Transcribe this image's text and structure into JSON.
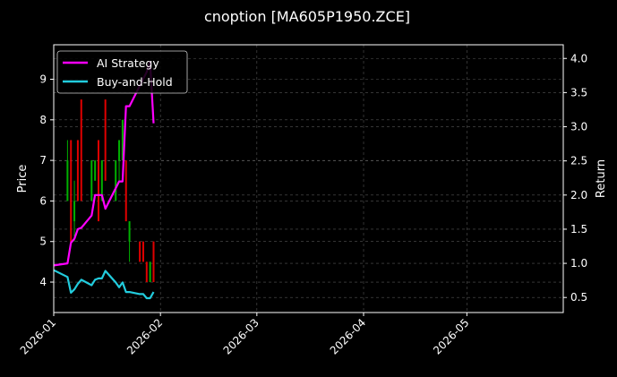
{
  "chart_data": {
    "type": "line",
    "title": "cnoption [MA605P1950.ZCE]",
    "xlabel": "",
    "ylabel_left": "Price",
    "ylabel_right": "Return",
    "x_range": [
      "2026-01-01",
      "2026-05-29"
    ],
    "x_ticks": [
      "2026-01",
      "2026-02",
      "2026-03",
      "2026-04",
      "2026-05"
    ],
    "ylim_left": [
      3.25,
      9.85
    ],
    "yticks_left": [
      4,
      5,
      6,
      7,
      8,
      9
    ],
    "ylim_right": [
      0.28,
      4.2
    ],
    "yticks_right": [
      "0.5",
      "1.0",
      "1.5",
      "2.0",
      "2.5",
      "3.0",
      "3.5",
      "4.0"
    ],
    "grid": true,
    "legend_position": "top-left",
    "colors": {
      "background": "#000000",
      "up": "#00b000",
      "down": "#e00000",
      "grid": "#555555"
    },
    "candles": [
      {
        "date": "2026-01-05",
        "open": 6.0,
        "close": 7.0,
        "low": 6.0,
        "high": 7.5
      },
      {
        "date": "2026-01-06",
        "open": 7.5,
        "close": 5.0,
        "low": 5.0,
        "high": 7.5
      },
      {
        "date": "2026-01-07",
        "open": 5.5,
        "close": 6.0,
        "low": 5.0,
        "high": 6.5
      },
      {
        "date": "2026-01-08",
        "open": 7.5,
        "close": 6.0,
        "low": 6.0,
        "high": 7.5
      },
      {
        "date": "2026-01-09",
        "open": 8.5,
        "close": 6.0,
        "low": 6.0,
        "high": 8.5
      },
      {
        "date": "2026-01-12",
        "open": 6.0,
        "close": 7.0,
        "low": 6.0,
        "high": 7.0
      },
      {
        "date": "2026-01-13",
        "open": 6.5,
        "close": 7.0,
        "low": 6.5,
        "high": 7.0
      },
      {
        "date": "2026-01-14",
        "open": 7.5,
        "close": 5.5,
        "low": 5.5,
        "high": 7.5
      },
      {
        "date": "2026-01-15",
        "open": 6.0,
        "close": 7.0,
        "low": 6.0,
        "high": 7.0
      },
      {
        "date": "2026-01-16",
        "open": 8.5,
        "close": 6.5,
        "low": 6.5,
        "high": 8.5
      },
      {
        "date": "2026-01-19",
        "open": 6.0,
        "close": 7.0,
        "low": 6.0,
        "high": 7.0
      },
      {
        "date": "2026-01-20",
        "open": 7.0,
        "close": 7.5,
        "low": 6.5,
        "high": 7.5
      },
      {
        "date": "2026-01-21",
        "open": 7.0,
        "close": 8.0,
        "low": 7.0,
        "high": 8.0
      },
      {
        "date": "2026-01-22",
        "open": 7.0,
        "close": 5.5,
        "low": 5.5,
        "high": 7.0
      },
      {
        "date": "2026-01-23",
        "open": 5.0,
        "close": 5.5,
        "low": 4.5,
        "high": 5.5
      },
      {
        "date": "2026-01-26",
        "open": 5.0,
        "close": 4.5,
        "low": 4.5,
        "high": 5.0
      },
      {
        "date": "2026-01-27",
        "open": 5.0,
        "close": 4.5,
        "low": 4.5,
        "high": 5.0
      },
      {
        "date": "2026-01-28",
        "open": 4.5,
        "close": 4.0,
        "low": 4.0,
        "high": 4.5
      },
      {
        "date": "2026-01-29",
        "open": 4.0,
        "close": 4.5,
        "low": 4.0,
        "high": 4.5
      },
      {
        "date": "2026-01-30",
        "open": 5.0,
        "close": 4.0,
        "low": 4.0,
        "high": 5.0
      }
    ],
    "series": [
      {
        "name": "AI Strategy",
        "color": "#ff00ff",
        "axis": "right",
        "x": [
          "2026-01-01",
          "2026-01-05",
          "2026-01-06",
          "2026-01-07",
          "2026-01-08",
          "2026-01-09",
          "2026-01-12",
          "2026-01-13",
          "2026-01-14",
          "2026-01-15",
          "2026-01-16",
          "2026-01-19",
          "2026-01-20",
          "2026-01-21",
          "2026-01-22",
          "2026-01-23",
          "2026-01-26",
          "2026-01-27",
          "2026-01-28",
          "2026-01-29",
          "2026-01-30"
        ],
        "y": [
          0.97,
          1.0,
          1.3,
          1.36,
          1.5,
          1.52,
          1.7,
          2.0,
          2.0,
          2.0,
          1.8,
          2.1,
          2.2,
          2.2,
          3.3,
          3.3,
          3.6,
          3.7,
          3.8,
          3.95,
          3.05
        ]
      },
      {
        "name": "Buy-and-Hold",
        "color": "#22ccdd",
        "axis": "right",
        "x": [
          "2026-01-01",
          "2026-01-05",
          "2026-01-06",
          "2026-01-07",
          "2026-01-08",
          "2026-01-09",
          "2026-01-12",
          "2026-01-13",
          "2026-01-14",
          "2026-01-15",
          "2026-01-16",
          "2026-01-19",
          "2026-01-20",
          "2026-01-21",
          "2026-01-22",
          "2026-01-23",
          "2026-01-26",
          "2026-01-27",
          "2026-01-28",
          "2026-01-29",
          "2026-01-30"
        ],
        "y": [
          0.9,
          0.8,
          0.57,
          0.62,
          0.7,
          0.76,
          0.68,
          0.76,
          0.78,
          0.78,
          0.89,
          0.72,
          0.65,
          0.72,
          0.58,
          0.58,
          0.55,
          0.55,
          0.49,
          0.49,
          0.58
        ]
      }
    ]
  }
}
